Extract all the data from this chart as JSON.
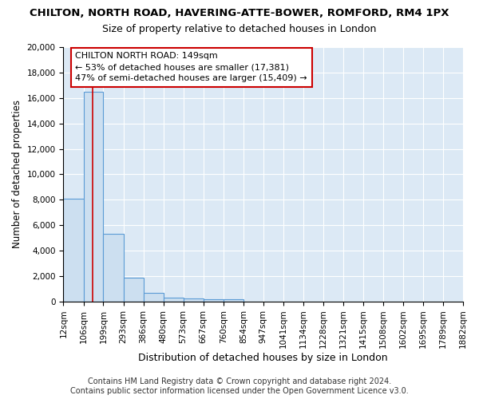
{
  "title": "CHILTON, NORTH ROAD, HAVERING-ATTE-BOWER, ROMFORD, RM4 1PX",
  "subtitle": "Size of property relative to detached houses in London",
  "xlabel": "Distribution of detached houses by size in London",
  "ylabel": "Number of detached properties",
  "bin_edges": [
    12,
    106,
    199,
    293,
    386,
    480,
    573,
    667,
    760,
    854,
    947,
    1041,
    1134,
    1228,
    1321,
    1415,
    1508,
    1602,
    1695,
    1789,
    1882
  ],
  "bar_heights": [
    8100,
    16500,
    5300,
    1850,
    700,
    310,
    230,
    200,
    200,
    0,
    0,
    0,
    0,
    0,
    0,
    0,
    0,
    0,
    0,
    0
  ],
  "bar_color": "#ccdff0",
  "bar_edge_color": "#5b9bd5",
  "background_color": "#dce9f5",
  "grid_color": "#ffffff",
  "property_size": 149,
  "red_line_color": "#cc0000",
  "annotation_line1": "CHILTON NORTH ROAD: 149sqm",
  "annotation_line2": "← 53% of detached houses are smaller (17,381)",
  "annotation_line3": "47% of semi-detached houses are larger (15,409) →",
  "annotation_box_color": "#ffffff",
  "annotation_box_edge": "#cc0000",
  "ylim": [
    0,
    20000
  ],
  "yticks": [
    0,
    2000,
    4000,
    6000,
    8000,
    10000,
    12000,
    14000,
    16000,
    18000,
    20000
  ],
  "footer_text": "Contains HM Land Registry data © Crown copyright and database right 2024.\nContains public sector information licensed under the Open Government Licence v3.0.",
  "title_fontsize": 9.5,
  "subtitle_fontsize": 9,
  "xlabel_fontsize": 9,
  "ylabel_fontsize": 8.5,
  "tick_fontsize": 7.5,
  "annotation_fontsize": 8,
  "footer_fontsize": 7
}
